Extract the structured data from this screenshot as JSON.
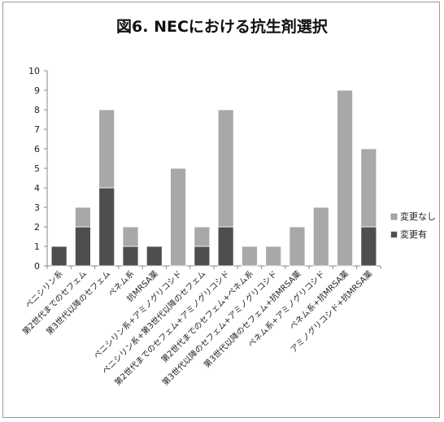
{
  "chart_data": {
    "type": "bar",
    "stacked": true,
    "title": "図6. NECにおける抗生剤選択",
    "xlabel": "",
    "ylabel": "",
    "ylim": [
      0,
      10
    ],
    "yticks": [
      0,
      1,
      2,
      3,
      4,
      5,
      6,
      7,
      8,
      9,
      10
    ],
    "grid": false,
    "legend_position": "right",
    "categories": [
      "ペニシリン系",
      "第2世代までのセフェム",
      "第3世代以降のセフェム",
      "ペネム系",
      "抗MRSA薬",
      "ペニシリン系+アミノグリコシド",
      "ペニシリン系+第3世代以降のセフェム",
      "第2世代までのセフェム+アミノグリコシド",
      "第2世代までのセフェム+ペネム系",
      "第3世代以降のセフェム+アミノグリコシド",
      "第3世代以降のセフェム+抗MRSA薬",
      "ペネム系+アミノグリコシド",
      "ペネム系+抗MRSA薬",
      "アミノグリコシド+抗MRSA薬"
    ],
    "series": [
      {
        "name": "変更有",
        "color": "#4e4e4e",
        "values": [
          1,
          2,
          4,
          1,
          1,
          0,
          1,
          2,
          0,
          0,
          0,
          0,
          0,
          2
        ]
      },
      {
        "name": "変更なし",
        "color": "#a8a8a8",
        "values": [
          0,
          1,
          4,
          1,
          0,
          5,
          1,
          6,
          1,
          1,
          2,
          3,
          9,
          4
        ]
      }
    ],
    "legend_order": [
      "変更なし",
      "変更有"
    ]
  }
}
